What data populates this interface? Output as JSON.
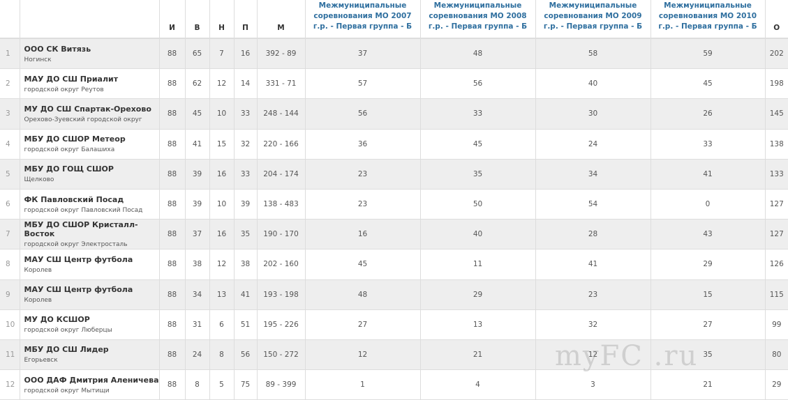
{
  "headers": {
    "pos": "",
    "team": "",
    "games": "И",
    "wins": "В",
    "draws": "Н",
    "losses": "П",
    "goals": "М",
    "c2007": "Межмуниципальные соревнования МО 2007 г.р. - Первая группа - Б",
    "c2008": "Межмуниципальные соревнования МО 2008 г.р. - Первая группа - Б",
    "c2009": "Межмуниципальные соревнования МО 2009 г.р. - Первая группа - Б",
    "c2010": "Межмуниципальные соревнования МО 2010 г.р. - Первая группа - Б",
    "points": "О"
  },
  "rows": [
    {
      "pos": "1",
      "team": "ООО СК Витязь",
      "city": "Ногинск",
      "games": "88",
      "wins": "65",
      "draws": "7",
      "losses": "16",
      "goals": "392 - 89",
      "c2007": "37",
      "c2008": "48",
      "c2009": "58",
      "c2010": "59",
      "points": "202"
    },
    {
      "pos": "2",
      "team": "МАУ ДО СШ Приалит",
      "city": "городской округ Реутов",
      "games": "88",
      "wins": "62",
      "draws": "12",
      "losses": "14",
      "goals": "331 - 71",
      "c2007": "57",
      "c2008": "56",
      "c2009": "40",
      "c2010": "45",
      "points": "198"
    },
    {
      "pos": "3",
      "team": "МУ ДО СШ Спартак-Орехово",
      "city": "Орехово-Зуевский городской округ",
      "games": "88",
      "wins": "45",
      "draws": "10",
      "losses": "33",
      "goals": "248 - 144",
      "c2007": "56",
      "c2008": "33",
      "c2009": "30",
      "c2010": "26",
      "points": "145"
    },
    {
      "pos": "4",
      "team": "МБУ ДО СШОР Метеор",
      "city": "городской округ Балашиха",
      "games": "88",
      "wins": "41",
      "draws": "15",
      "losses": "32",
      "goals": "220 - 166",
      "c2007": "36",
      "c2008": "45",
      "c2009": "24",
      "c2010": "33",
      "points": "138"
    },
    {
      "pos": "5",
      "team": "МБУ ДО ГОЩ СШОР",
      "city": "Щелково",
      "games": "88",
      "wins": "39",
      "draws": "16",
      "losses": "33",
      "goals": "204 - 174",
      "c2007": "23",
      "c2008": "35",
      "c2009": "34",
      "c2010": "41",
      "points": "133"
    },
    {
      "pos": "6",
      "team": "ФК Павловский Посад",
      "city": "городской округ Павловский Посад",
      "games": "88",
      "wins": "39",
      "draws": "10",
      "losses": "39",
      "goals": "138 - 483",
      "c2007": "23",
      "c2008": "50",
      "c2009": "54",
      "c2010": "0",
      "points": "127"
    },
    {
      "pos": "7",
      "team": "МБУ ДО СШОР Кристалл-Восток",
      "city": "городской округ Электросталь",
      "games": "88",
      "wins": "37",
      "draws": "16",
      "losses": "35",
      "goals": "190 - 170",
      "c2007": "16",
      "c2008": "40",
      "c2009": "28",
      "c2010": "43",
      "points": "127"
    },
    {
      "pos": "8",
      "team": "МАУ СШ Центр футбола",
      "city": "Королев",
      "games": "88",
      "wins": "38",
      "draws": "12",
      "losses": "38",
      "goals": "202 - 160",
      "c2007": "45",
      "c2008": "11",
      "c2009": "41",
      "c2010": "29",
      "points": "126"
    },
    {
      "pos": "9",
      "team": "МАУ СШ Центр футбола",
      "city": "Королев",
      "games": "88",
      "wins": "34",
      "draws": "13",
      "losses": "41",
      "goals": "193 - 198",
      "c2007": "48",
      "c2008": "29",
      "c2009": "23",
      "c2010": "15",
      "points": "115"
    },
    {
      "pos": "10",
      "team": "МУ ДО КСШОР",
      "city": "городской округ Люберцы",
      "games": "88",
      "wins": "31",
      "draws": "6",
      "losses": "51",
      "goals": "195 - 226",
      "c2007": "27",
      "c2008": "13",
      "c2009": "32",
      "c2010": "27",
      "points": "99"
    },
    {
      "pos": "11",
      "team": "МБУ ДО СШ Лидер",
      "city": "Егорьевск",
      "games": "88",
      "wins": "24",
      "draws": "8",
      "losses": "56",
      "goals": "150 - 272",
      "c2007": "12",
      "c2008": "21",
      "c2009": "12",
      "c2010": "35",
      "points": "80"
    },
    {
      "pos": "12",
      "team": "ООО ДАФ Дмитрия Аленичева",
      "city": "городской округ Мытищи",
      "games": "88",
      "wins": "8",
      "draws": "5",
      "losses": "75",
      "goals": "89 - 399",
      "c2007": "1",
      "c2008": "4",
      "c2009": "3",
      "c2010": "21",
      "points": "29"
    }
  ],
  "watermark": "myFC .ru"
}
